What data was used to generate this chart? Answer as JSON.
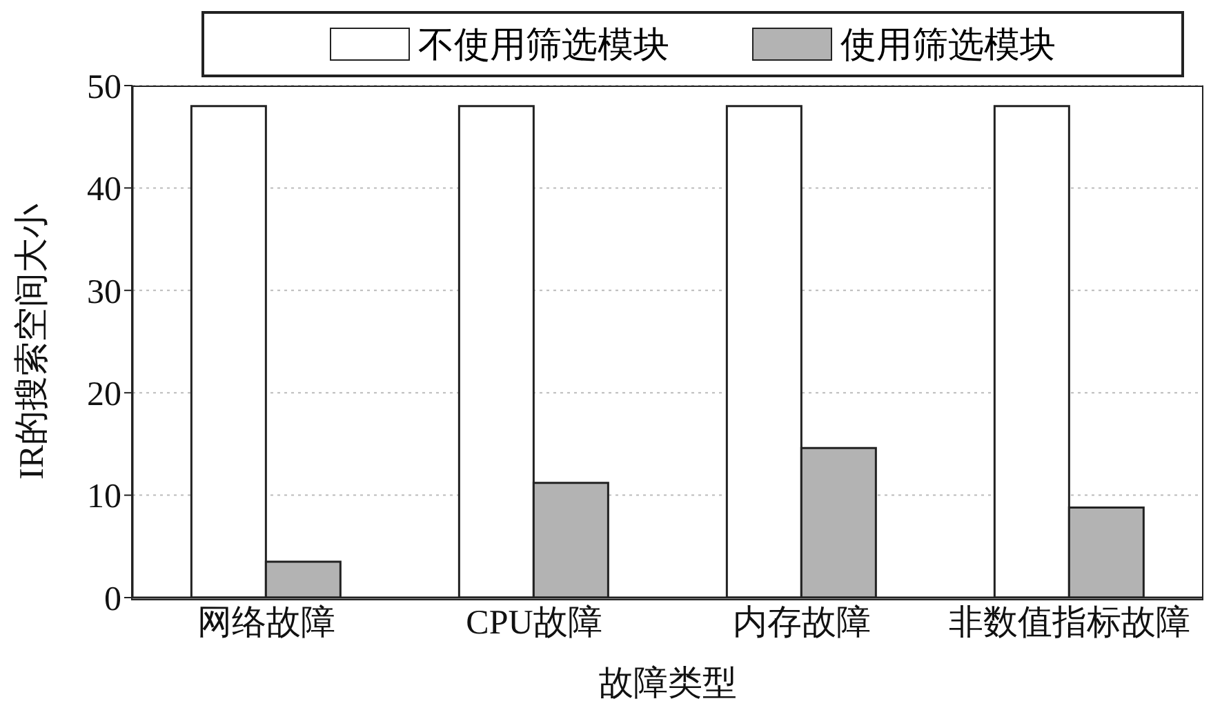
{
  "chart_data": {
    "type": "bar",
    "xlabel": "故障类型",
    "ylabel": "IR的搜索空间大小",
    "categories": [
      "网络故障",
      "CPU故障",
      "内存故障",
      "非数值指标故障"
    ],
    "series": [
      {
        "name": "不使用筛选模块",
        "color": "#ffffff",
        "values": [
          48,
          48,
          48,
          48
        ]
      },
      {
        "name": "使用筛选模块",
        "color": "#b3b3b3",
        "values": [
          3.5,
          11.2,
          14.6,
          8.8
        ]
      }
    ],
    "ylim": [
      0,
      50
    ],
    "yticks": [
      0,
      10,
      20,
      30,
      40,
      50
    ],
    "grid": "y",
    "legend": "top"
  }
}
